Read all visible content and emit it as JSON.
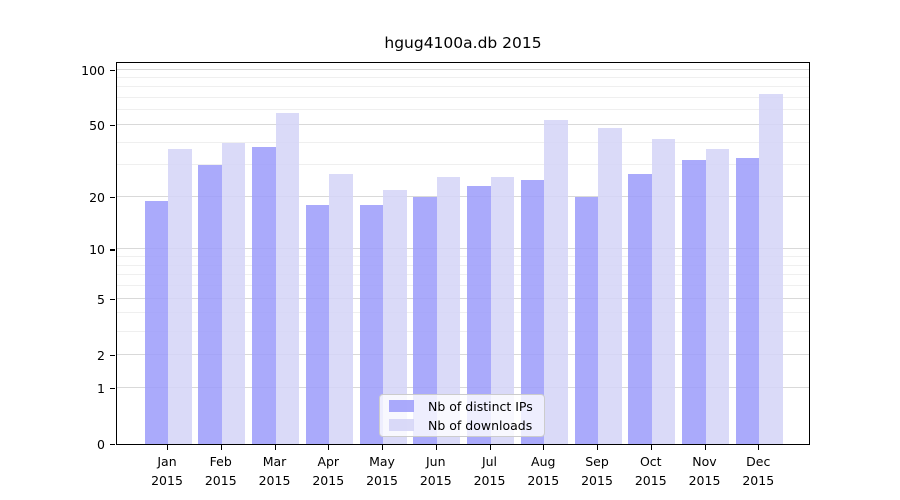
{
  "chart_data": {
    "type": "bar",
    "title": "hgug4100a.db 2015",
    "categories": [
      "Jan",
      "Feb",
      "Mar",
      "Apr",
      "May",
      "Jun",
      "Jul",
      "Aug",
      "Sep",
      "Oct",
      "Nov",
      "Dec"
    ],
    "year": "2015",
    "series": [
      {
        "name": "Nb of distinct IPs",
        "color": "rgba(155,155,250,0.85)",
        "values": [
          19,
          30,
          38,
          18,
          18,
          20,
          23,
          25,
          20,
          27,
          32,
          33
        ]
      },
      {
        "name": "Nb of downloads",
        "color": "rgba(212,212,247,0.85)",
        "values": [
          37,
          40,
          58,
          27,
          22,
          26,
          26,
          53,
          48,
          42,
          37,
          74
        ]
      }
    ],
    "yscale": "log1p",
    "yticks": [
      0,
      1,
      2,
      5,
      10,
      20,
      50,
      100
    ],
    "minor_gridlines": [
      3,
      4,
      6,
      7,
      8,
      9,
      30,
      40,
      60,
      70,
      80,
      90
    ],
    "ylim": [
      0,
      111
    ],
    "grid": true,
    "legend_position": "bottom-center",
    "background_color": "#ffffff",
    "text_color": "#000000"
  }
}
